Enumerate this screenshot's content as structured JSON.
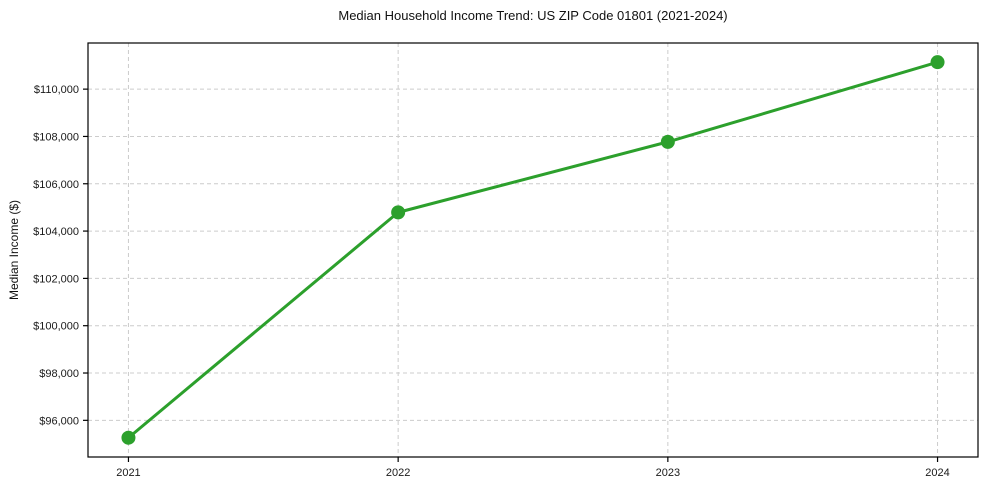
{
  "chart_data": {
    "type": "line",
    "title": "Median Household Income Trend: US ZIP Code 01801 (2021-2024)",
    "xlabel": "",
    "ylabel": "Median Income ($)",
    "categories": [
      "2021",
      "2022",
      "2023",
      "2024"
    ],
    "x": [
      2021,
      2022,
      2023,
      2024
    ],
    "series": [
      {
        "name": "Median Household Income",
        "values": [
          95265,
          104790,
          107770,
          111140
        ]
      }
    ],
    "y_ticks": [
      96000,
      98000,
      100000,
      102000,
      104000,
      106000,
      108000,
      110000
    ],
    "y_tick_labels": [
      "$96,000",
      "$98,000",
      "$100,000",
      "$102,000",
      "$104,000",
      "$106,000",
      "$108,000",
      "$110,000"
    ],
    "ylim": [
      94450,
      111950
    ],
    "xlim": [
      2020.85,
      2024.15
    ],
    "grid": true,
    "legend": false,
    "line_color": "#2ca02c",
    "marker": "circle",
    "marker_radius": 7,
    "line_width": 3,
    "grid_color": "#cccccc",
    "spine_color": "#000000",
    "background": "#ffffff"
  }
}
